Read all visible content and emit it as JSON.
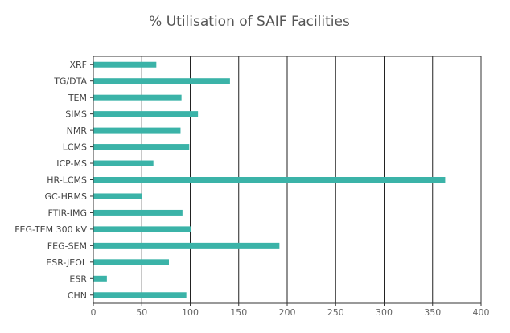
{
  "chart_data": {
    "type": "bar",
    "orientation": "horizontal",
    "title": "% Utilisation of SAIF Facilities",
    "xlabel": "",
    "ylabel": "",
    "categories": [
      "XRF",
      "TG/DTA",
      "TEM",
      "SIMS",
      "NMR",
      "LCMS",
      "ICP-MS",
      "HR-LCMS",
      "GC-HRMS",
      "FTIR-IMG",
      "FEG-TEM 300 kV",
      "FEG-SEM",
      "ESR-JEOL",
      "ESR",
      "CHN"
    ],
    "values": [
      65,
      141,
      91,
      108,
      90,
      99,
      62,
      363,
      50,
      92,
      101,
      192,
      78,
      14,
      96
    ],
    "xlim": [
      0,
      400
    ],
    "xticks": [
      "0",
      "50",
      "100",
      "150",
      "200",
      "250",
      "300",
      "350",
      "400"
    ],
    "grid": "vertical",
    "legend": "none",
    "bar_color": "#3bb3a8"
  }
}
